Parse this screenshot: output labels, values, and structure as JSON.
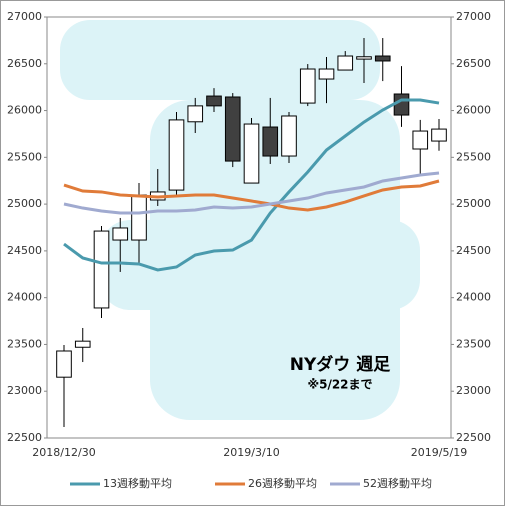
{
  "chart_data": {
    "type": "candlestick",
    "title": "NYダウ 週足",
    "subtitle": "※5/22まで",
    "categories": [
      "2018/12/30",
      null,
      null,
      null,
      null,
      null,
      null,
      null,
      null,
      null,
      "2019/3/10",
      null,
      null,
      null,
      null,
      null,
      null,
      null,
      null,
      null,
      "2019/5/19"
    ],
    "open": [
      23150,
      23470,
      23890,
      24616,
      24616,
      25044,
      25150,
      25880,
      26155,
      26145,
      25225,
      25824,
      25514,
      26080,
      26337,
      26433,
      26550,
      26583,
      26177,
      25589,
      25674
    ],
    "high": [
      23494,
      23676,
      24766,
      24852,
      25225,
      25375,
      25985,
      26135,
      26240,
      26187,
      25920,
      26135,
      25985,
      26497,
      26572,
      26636,
      26775,
      26775,
      26475,
      25900,
      25910
    ],
    "low": [
      22618,
      23312,
      23782,
      24275,
      24360,
      24980,
      25087,
      25760,
      25984,
      25396,
      25225,
      25429,
      25440,
      26048,
      26080,
      26465,
      26294,
      26315,
      25825,
      25300,
      25570
    ],
    "close": [
      23430,
      23535,
      24712,
      24745,
      25097,
      25130,
      25900,
      26050,
      26050,
      25460,
      25856,
      25514,
      25942,
      26444,
      26444,
      26583,
      26575,
      26530,
      25952,
      25781,
      25802
    ],
    "up_color": "#ffffff",
    "down_color": "#404040",
    "series": [
      {
        "name": "13週移動平均",
        "color": "#4a9aad",
        "values": [
          24573,
          24424,
          24370,
          24370,
          24360,
          24296,
          24328,
          24456,
          24499,
          24509,
          24616,
          24905,
          25130,
          25343,
          25578,
          25728,
          25877,
          26006,
          26113,
          26113,
          26080
        ]
      },
      {
        "name": "26週移動平均",
        "color": "#e07b39",
        "values": [
          25204,
          25140,
          25130,
          25097,
          25087,
          25076,
          25087,
          25097,
          25097,
          25065,
          25033,
          25001,
          24958,
          24937,
          24969,
          25022,
          25087,
          25151,
          25183,
          25194,
          25247
        ]
      },
      {
        "name": "52週移動平均",
        "color": "#a0aad0",
        "values": [
          25001,
          24958,
          24926,
          24905,
          24905,
          24926,
          24926,
          24937,
          24969,
          24958,
          24969,
          25001,
          25033,
          25065,
          25119,
          25151,
          25183,
          25247,
          25279,
          25311,
          25333
        ]
      }
    ],
    "ylim": [
      22500,
      27000
    ],
    "yticks": [
      22500,
      23000,
      23500,
      24000,
      24500,
      25000,
      25500,
      26000,
      26500,
      27000
    ],
    "y2lim": [
      22500,
      27000
    ],
    "y2ticks": [
      22500,
      23000,
      23500,
      24000,
      24500,
      25000,
      25500,
      26000,
      26500,
      27000
    ],
    "legend": "bottom"
  }
}
